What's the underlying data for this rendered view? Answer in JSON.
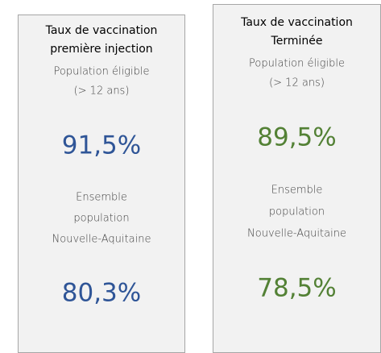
{
  "cards": [
    {
      "title": [
        "Taux de vaccination",
        "première injection"
      ],
      "eligible_label": [
        "Population éligible",
        "(> 12 ans)"
      ],
      "eligible_value": "91,5%",
      "total_label": [
        "Ensemble",
        "population",
        "Nouvelle-Aquitaine"
      ],
      "total_value": "80,3%"
    },
    {
      "title": [
        "Taux de vaccination",
        "Terminée"
      ],
      "eligible_label": [
        "Population éligible",
        "(> 12 ans)"
      ],
      "eligible_value": "89,5%",
      "total_label": [
        "Ensemble",
        "population",
        "Nouvelle-Aquitaine"
      ],
      "total_value": "78,5%"
    }
  ]
}
